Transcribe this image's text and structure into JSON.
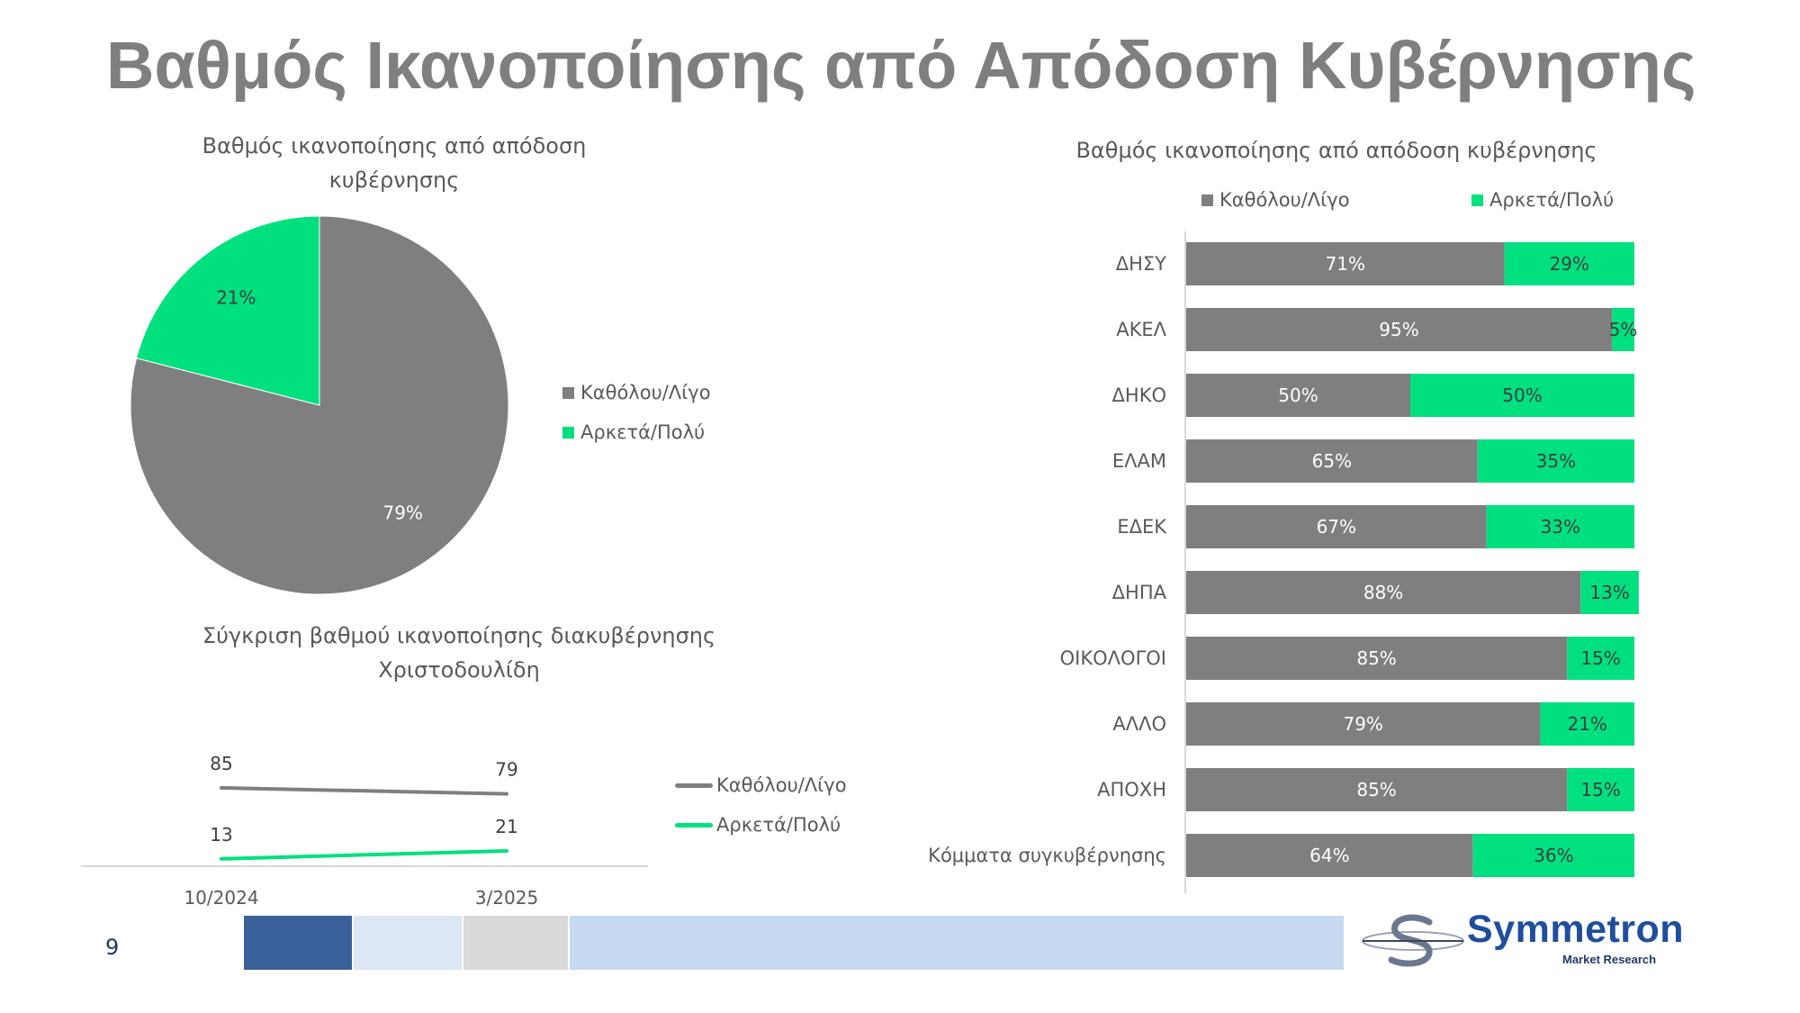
{
  "page": {
    "title": "Βαθμός Ικανοποίησης από Απόδοση Κυβέρνησης",
    "page_number": "9",
    "logo": {
      "name": "Symmetron",
      "tagline": "Market Research"
    },
    "band_colors": [
      "#3a6099",
      "#dde6f3",
      "#d9d9d9",
      "#c5d9f0"
    ]
  },
  "colors": {
    "negative": "#7f7f7f",
    "positive": "#00e07f",
    "axis": "#d9d9d9"
  },
  "chart_data": [
    {
      "type": "pie",
      "title": "Βαθμός ικανοποίησης από απόδοση κυβέρνησης",
      "title_lines": [
        "Βαθμός ικανοποίησης από απόδοση",
        "κυβέρνησης"
      ],
      "categories": [
        "Καθόλου/Λίγο",
        "Αρκετά/Πολύ"
      ],
      "values": [
        79,
        21
      ],
      "labels": [
        "79%",
        "21%"
      ],
      "colors": [
        "#7f7f7f",
        "#00e07f"
      ],
      "legend": "right"
    },
    {
      "type": "line",
      "title": "Σύγκριση βαθμού ικανοποίησης διακυβέρνησης Χριστοδουλίδη",
      "title_lines": [
        "Σύγκριση βαθμού ικανοποίησης διακυβέρνησης",
        "Χριστοδουλίδη"
      ],
      "x": [
        "10/2024",
        "3/2025"
      ],
      "series": [
        {
          "name": "Καθόλου/Λίγο",
          "values": [
            85,
            79
          ],
          "labels": [
            "85",
            "79"
          ],
          "color": "#7f7f7f"
        },
        {
          "name": "Αρκετά/Πολύ",
          "values": [
            13,
            21
          ],
          "labels": [
            "13",
            "21"
          ],
          "color": "#00e07f"
        }
      ],
      "legend": "right"
    },
    {
      "type": "bar",
      "orientation": "horizontal",
      "stacked": true,
      "title": "Βαθμός ικανοποίησης από απόδοση κυβέρνησης",
      "categories": [
        "ΔΗΣΥ",
        "ΑΚΕΛ",
        "ΔΗΚΟ",
        "ΕΛΑΜ",
        "ΕΔΕΚ",
        "ΔΗΠΑ",
        "ΟΙΚΟΛΟΓΟΙ",
        "ΑΛΛΟ",
        "ΑΠΟΧΗ",
        "Κόμματα συγκυβέρνησης"
      ],
      "series": [
        {
          "name": "Καθόλου/Λίγο",
          "color": "#7f7f7f",
          "values": [
            71,
            95,
            50,
            65,
            67,
            88,
            85,
            79,
            85,
            64
          ],
          "labels": [
            "71%",
            "95%",
            "50%",
            "65%",
            "67%",
            "88%",
            "85%",
            "79%",
            "85%",
            "64%"
          ]
        },
        {
          "name": "Αρκετά/Πολύ",
          "color": "#00e07f",
          "values": [
            29,
            5,
            50,
            35,
            33,
            13,
            15,
            21,
            15,
            36
          ],
          "labels": [
            "29%",
            "5%",
            "50%",
            "35%",
            "33%",
            "13%",
            "15%",
            "21%",
            "15%",
            "36%"
          ]
        }
      ],
      "xlim": [
        0,
        100
      ],
      "legend": "top"
    }
  ]
}
